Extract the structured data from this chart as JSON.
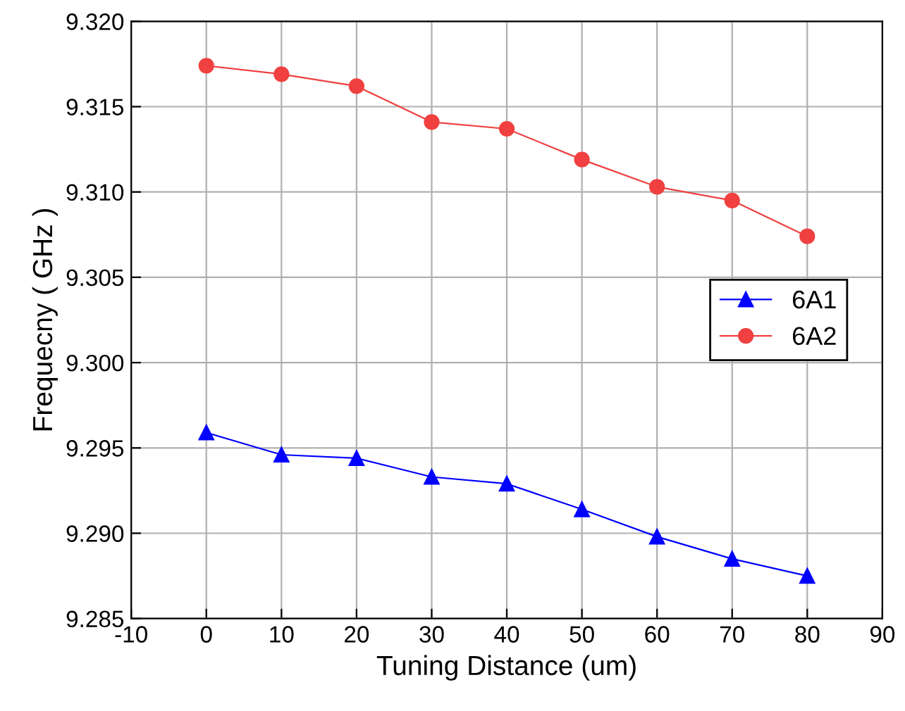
{
  "chart_data": {
    "type": "line",
    "xlabel": "Tuning Distance (um)",
    "ylabel": "Frequecny ( GHz )",
    "x": [
      0,
      10,
      20,
      30,
      40,
      50,
      60,
      70,
      80
    ],
    "series": [
      {
        "name": "6A1",
        "color": "#0000ff",
        "marker": "triangle",
        "values": [
          9.2959,
          9.2946,
          9.2944,
          9.2933,
          9.2929,
          9.2914,
          9.2898,
          9.2885,
          9.2875
        ]
      },
      {
        "name": "6A2",
        "color": "#f04040",
        "marker": "circle",
        "values": [
          9.3174,
          9.3169,
          9.3162,
          9.3141,
          9.3137,
          9.3119,
          9.3103,
          9.3095,
          9.3074
        ]
      }
    ],
    "xlim": [
      -10,
      90
    ],
    "xticks": [
      -10,
      0,
      10,
      20,
      30,
      40,
      50,
      60,
      70,
      80,
      90
    ],
    "ylim": [
      9.285,
      9.32
    ],
    "yticks": [
      {
        "value": 9.285,
        "label": "9.285"
      },
      {
        "value": 9.29,
        "label": "9.290"
      },
      {
        "value": 9.295,
        "label": "9.295"
      },
      {
        "value": 9.3,
        "label": "9.300"
      },
      {
        "value": 9.305,
        "label": "9.305"
      },
      {
        "value": 9.31,
        "label": "9.310"
      },
      {
        "value": 9.315,
        "label": "9.315"
      },
      {
        "value": 9.32,
        "label": "9.320"
      }
    ],
    "grid": true,
    "legend": "right",
    "line_style": "solid"
  }
}
